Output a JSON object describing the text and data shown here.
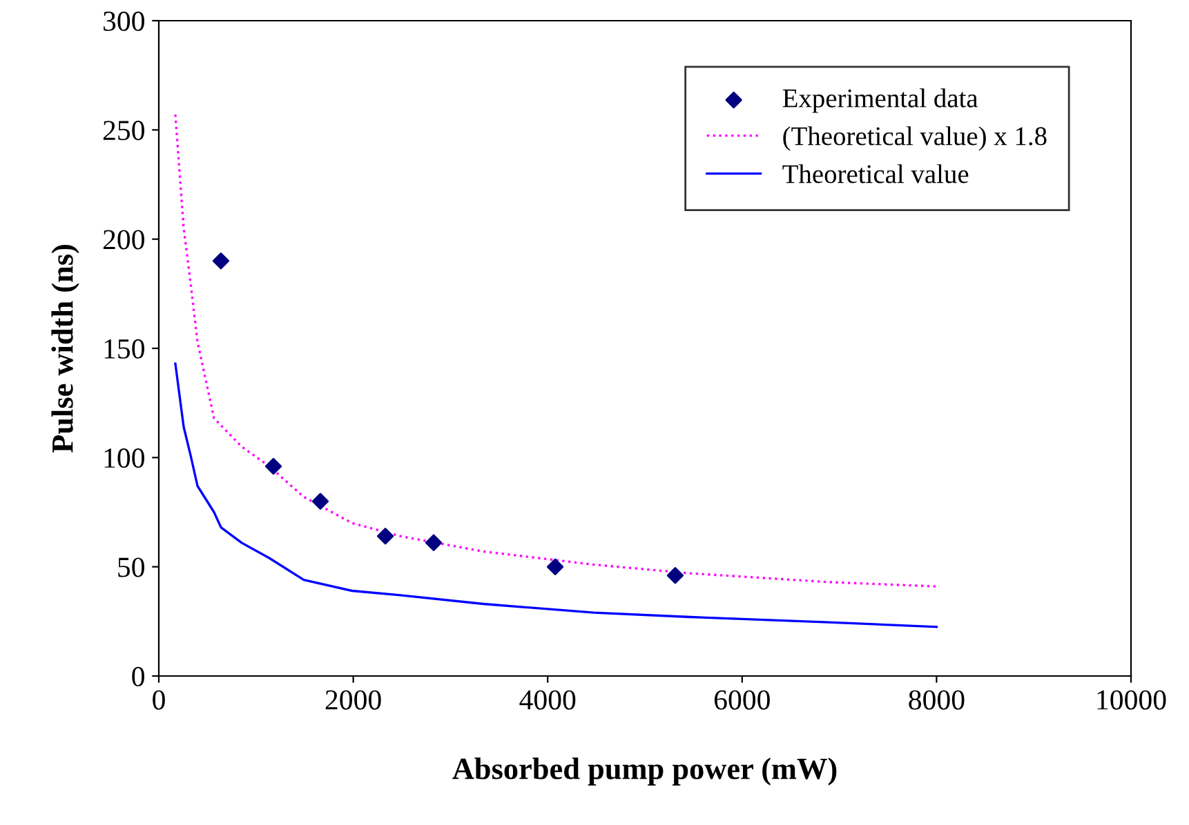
{
  "chart_data": {
    "type": "scatter",
    "xlabel": "Absorbed pump power (mW)",
    "ylabel": "Pulse width (ns)",
    "xlim": [
      0,
      10000
    ],
    "xticks": [
      0,
      2000,
      4000,
      6000,
      8000,
      10000
    ],
    "ylim": [
      0,
      300
    ],
    "yticks": [
      0,
      50,
      100,
      150,
      200,
      250,
      300
    ],
    "grid": false,
    "legend": "top right",
    "series": [
      {
        "name": "Experimental data",
        "marker": "diamond",
        "color": "#000080",
        "x": [
          639,
          1179,
          1662,
          2330,
          2827,
          4077,
          5312
        ],
        "values": [
          190,
          96,
          80,
          64,
          61,
          50,
          46
        ]
      },
      {
        "name": "(Theoretical value) x 1.8",
        "type": "line",
        "line_style": "dotted",
        "color": "#ff00ff",
        "x": [
          170,
          256,
          327,
          398,
          568,
          852,
          1136,
          1491,
          1989,
          2486,
          3338,
          4474,
          5469,
          6889,
          8000
        ],
        "values": [
          257,
          205,
          180,
          153,
          118,
          105,
          96,
          82,
          70,
          64,
          57,
          51,
          47,
          43,
          41
        ]
      },
      {
        "name": "Theoretical value",
        "type": "line",
        "line_style": "solid",
        "color": "#0000ff",
        "x": [
          170,
          256,
          327,
          398,
          568,
          640,
          852,
          1136,
          1491,
          1989,
          2486,
          3338,
          4474,
          5469,
          6889,
          8000
        ],
        "values": [
          143,
          114,
          101,
          87,
          75,
          68,
          61,
          54,
          44,
          39,
          37,
          33,
          29,
          27,
          24.6,
          22.5
        ]
      }
    ]
  }
}
